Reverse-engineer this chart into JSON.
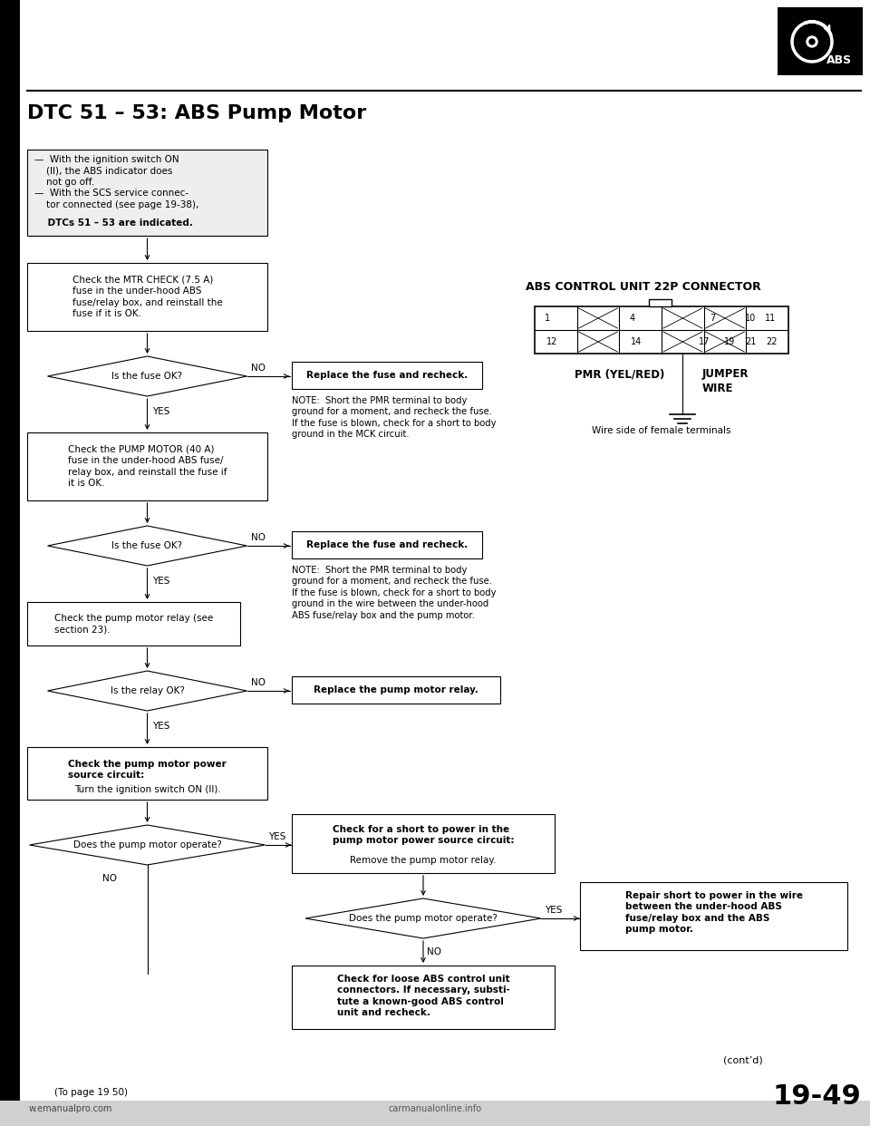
{
  "title": "DTC 51 – 53: ABS Pump Motor",
  "page_number": "19-49",
  "page_ref": "(To page 19 50)",
  "website": "w.emanualpro.com",
  "bg_color": "#ffffff",
  "text_color": "#000000",
  "note1": "NOTE:  Short the PMR terminal to body\nground for a moment, and recheck the fuse.\nIf the fuse is blown, check for a short to body\nground in the MCK circuit.",
  "note2": "NOTE:  Short the PMR terminal to body\nground for a moment, and recheck the fuse.\nIf the fuse is blown, check for a short to body\nground in the wire between the under-hood\nABS fuse/relay box and the pump motor.",
  "connector_title": "ABS CONTROL UNIT 22P CONNECTOR",
  "connector_label1": "PMR (YEL/RED)",
  "connector_label2": "JUMPER\nWIRE",
  "wire_side": "Wire side of female terminals",
  "cont_d": "(cont’d)",
  "flowchart": {
    "box1_text": "—  With the ignition switch ON\n    (II), the ABS indicator does\n    not go off.\n—  With the SCS service connec-\n    tor connected (see page 19-38),\n    DTCs 51 – 53 are indicated.",
    "box1_bold": "    DTCs 51 – 53 are indicated.",
    "box2_text": "Check the MTR CHECK (7.5 A)\nfuse in the under-hood ABS\nfuse/relay box, and reinstall the\nfuse if it is OK.",
    "d1_text": "Is the fuse OK?",
    "rb1_text": "Replace the fuse and recheck.",
    "box3_text": "Check the PUMP MOTOR (40 A)\nfuse in the under-hood ABS fuse/\nrelay box, and reinstall the fuse if\nit is OK.",
    "d2_text": "Is the fuse OK?",
    "rb2_text": "Replace the fuse and recheck.",
    "box4_text": "Check the pump motor relay (see\nsection 23).",
    "d3_text": "Is the relay OK?",
    "rb3_text": "Replace the pump motor relay.",
    "box5_text_bold": "Check the pump motor power\nsource circuit:",
    "box5_text_normal": "Turn the ignition switch ON (II).",
    "d4_text": "Does the pump motor operate?",
    "sb1_text": "Check for a short to power in the\npump motor power source circuit:\nRemove the pump motor relay.",
    "d5_text": "Does the pump motor operate?",
    "ab1_text": "Check for loose ABS control unit\nconnectors. If necessary, substi-\ntute a known-good ABS control\nunit and recheck.",
    "rp1_text": "Repair short to power in the wire\nbetween the under-hood ABS\nfuse/relay box and the ABS\npump motor."
  }
}
